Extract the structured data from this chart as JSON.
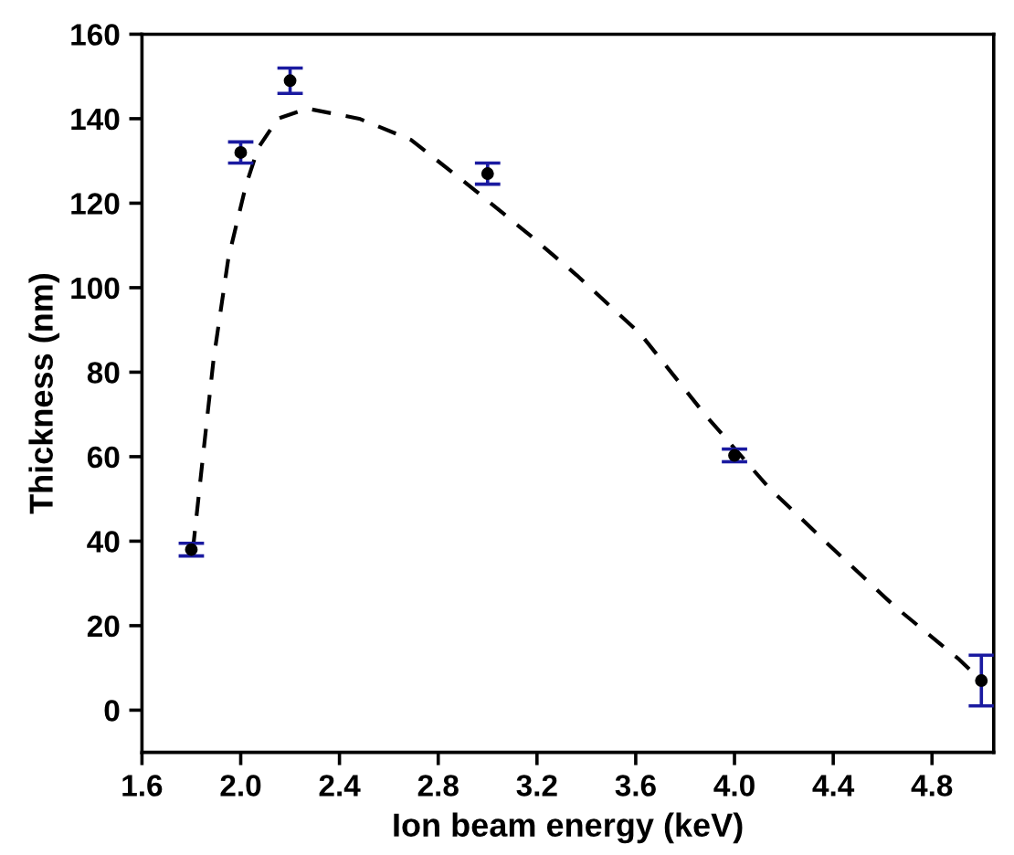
{
  "chart_data": {
    "type": "scatter",
    "xlabel": "Ion beam energy (keV)",
    "ylabel": "Thickness (nm)",
    "xlim": [
      1.6,
      5.05
    ],
    "ylim": [
      -10,
      160
    ],
    "xticks": [
      1.6,
      {
        "value": 2.0,
        "label": "2.0"
      },
      2.4,
      2.8,
      3.2,
      3.6,
      {
        "value": 4.0,
        "label": "4.0"
      },
      4.4,
      4.8
    ],
    "yticks": [
      0,
      20,
      40,
      60,
      80,
      100,
      120,
      140,
      160
    ],
    "grid": false,
    "legend": false,
    "series": [
      {
        "color": "#000000",
        "marker": "circle",
        "x": [
          1.8,
          2.0,
          2.2,
          3.0,
          4.0,
          5.0
        ],
        "values": [
          38,
          132,
          149,
          127,
          60.3,
          7
        ],
        "errors": [
          1.5,
          2.5,
          3,
          2.5,
          1.5,
          6
        ]
      },
      {
        "type": "line",
        "color": "#000000",
        "line_style": "dashed",
        "marker": "none",
        "x": [
          1.8,
          1.81,
          1.86,
          1.89,
          1.95,
          2.02,
          2.07,
          2.15,
          2.27,
          2.48,
          2.69,
          2.95,
          3.18,
          3.36,
          3.62,
          3.88,
          4.14,
          4.39,
          4.65,
          4.91,
          5.0
        ],
        "values": [
          38,
          40,
          67,
          83,
          107,
          124,
          133,
          140,
          142.4,
          140,
          135,
          123,
          112,
          103,
          89,
          70,
          52.6,
          38.7,
          24.5,
          12,
          7
        ]
      }
    ]
  }
}
